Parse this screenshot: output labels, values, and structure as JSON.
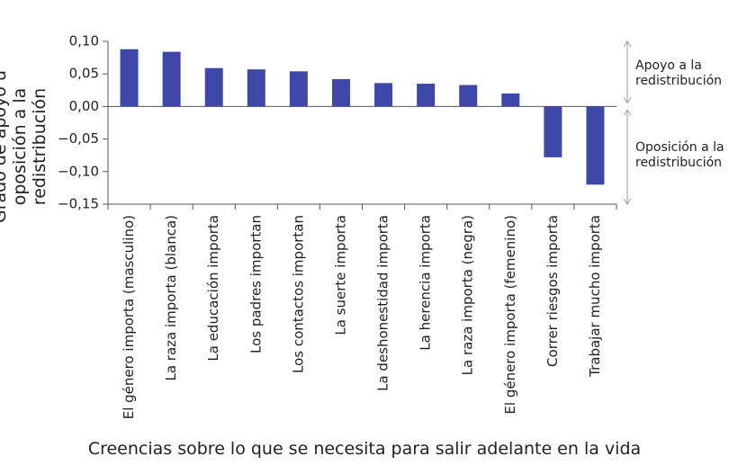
{
  "chart_data": {
    "type": "bar",
    "y_label": "Grado de apoyo u oposición a la redistribución",
    "x_label": "Creencias sobre lo que se necesita para salir adelante en la vida",
    "categories": [
      "El género importa (masculino)",
      "La raza importa (blanca)",
      "La educación importa",
      "Los padres importan",
      "Los contactos importan",
      "La suerte importa",
      "La deshonestidad importa",
      "La herencia importa",
      "La raza importa (negra)",
      "El género importa (femenino)",
      "Correr riesgos importa",
      "Trabajar mucho importa"
    ],
    "values": [
      0.088,
      0.084,
      0.059,
      0.057,
      0.054,
      0.042,
      0.036,
      0.035,
      0.033,
      0.02,
      -0.078,
      -0.12
    ],
    "color": "#3f48a8",
    "ylim": [
      -0.15,
      0.1
    ],
    "yticks": [
      {
        "value": 0.1,
        "label": "0,10"
      },
      {
        "value": 0.05,
        "label": "0,05"
      },
      {
        "value": 0.0,
        "label": "0,00"
      },
      {
        "value": -0.05,
        "label": "−0,05"
      },
      {
        "value": -0.1,
        "label": "−0,10"
      },
      {
        "value": -0.15,
        "label": "−0,15"
      }
    ],
    "annotations": [
      "Apoyo a la redistribución",
      "Oposición a la redistribución"
    ]
  }
}
